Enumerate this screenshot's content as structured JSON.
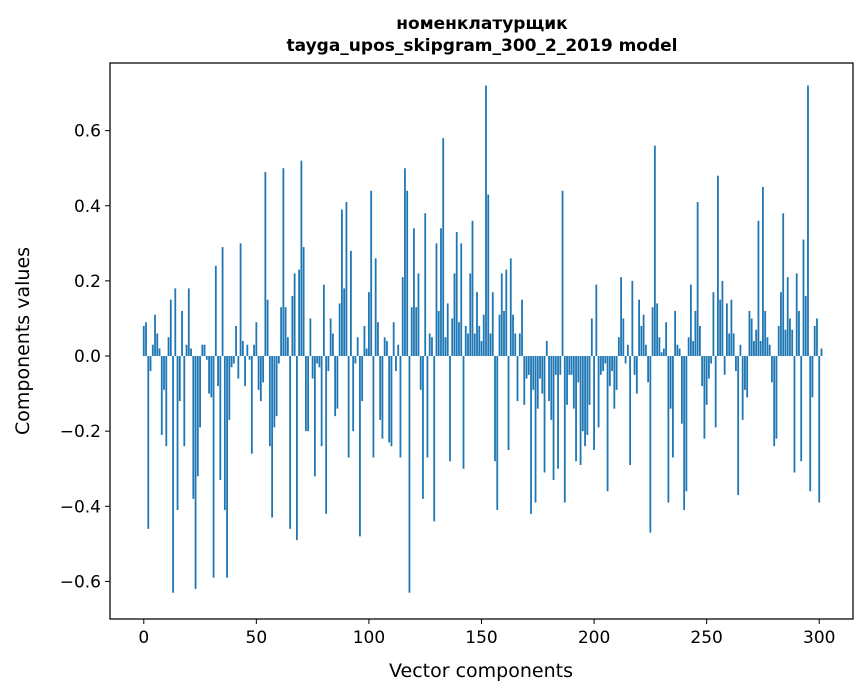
{
  "chart_data": {
    "type": "bar",
    "title_lines": [
      "номенклатурщик",
      "tayga_upos_skipgram_300_2_2019 model"
    ],
    "xlabel": "Vector components",
    "ylabel": "Components values",
    "xlim": [
      -15,
      315
    ],
    "ylim": [
      -0.7,
      0.78
    ],
    "xticks": [
      0,
      50,
      100,
      150,
      200,
      250,
      300
    ],
    "yticks": [
      -0.6,
      -0.4,
      -0.2,
      0.0,
      0.2,
      0.4,
      0.6
    ],
    "ytick_labels": [
      "−0.6",
      "−0.4",
      "−0.2",
      "0.0",
      "0.2",
      "0.4",
      "0.6"
    ],
    "bar_color": "#1f77b4",
    "grid": false,
    "legend": "none",
    "values": [
      0.08,
      0.09,
      -0.46,
      -0.04,
      0.03,
      0.11,
      0.06,
      0.02,
      -0.21,
      -0.09,
      -0.24,
      0.05,
      0.15,
      -0.63,
      0.18,
      -0.41,
      -0.12,
      0.12,
      -0.24,
      0.03,
      0.18,
      0.02,
      -0.38,
      -0.62,
      -0.32,
      -0.19,
      0.03,
      0.03,
      -0.01,
      -0.1,
      -0.11,
      -0.59,
      0.24,
      -0.08,
      -0.33,
      0.29,
      -0.41,
      -0.59,
      -0.17,
      -0.03,
      -0.02,
      0.08,
      -0.06,
      0.3,
      0.04,
      -0.08,
      0.03,
      -0.01,
      -0.26,
      0.03,
      0.09,
      -0.09,
      -0.12,
      -0.07,
      0.49,
      0.15,
      -0.24,
      -0.43,
      -0.19,
      -0.16,
      -0.02,
      0.13,
      0.5,
      0.13,
      0.05,
      -0.46,
      0.16,
      0.22,
      -0.49,
      0.23,
      0.52,
      0.29,
      -0.2,
      -0.2,
      0.1,
      -0.06,
      -0.32,
      -0.02,
      -0.03,
      -0.24,
      0.19,
      -0.42,
      -0.04,
      0.1,
      0.06,
      -0.16,
      -0.14,
      0.14,
      0.39,
      0.18,
      0.41,
      -0.27,
      0.28,
      -0.2,
      -0.02,
      0.05,
      -0.48,
      -0.12,
      0.08,
      0.02,
      0.17,
      0.44,
      -0.27,
      0.26,
      0.09,
      -0.17,
      -0.22,
      0.05,
      0.04,
      -0.23,
      -0.24,
      0.09,
      -0.04,
      0.03,
      -0.27,
      0.21,
      0.5,
      0.44,
      -0.63,
      0.13,
      0.34,
      0.13,
      0.22,
      -0.09,
      -0.38,
      0.38,
      -0.27,
      0.06,
      0.05,
      -0.44,
      0.3,
      0.12,
      0.34,
      0.58,
      0.05,
      0.14,
      -0.28,
      0.1,
      0.22,
      0.33,
      0.09,
      0.3,
      -0.3,
      0.08,
      0.06,
      0.22,
      0.36,
      0.06,
      0.17,
      0.08,
      0.04,
      0.11,
      0.72,
      0.43,
      0.06,
      0.17,
      -0.28,
      -0.41,
      0.11,
      0.22,
      0.12,
      0.23,
      -0.25,
      0.26,
      0.11,
      0.06,
      -0.12,
      0.06,
      0.15,
      -0.13,
      -0.06,
      -0.05,
      -0.42,
      -0.09,
      -0.39,
      -0.14,
      -0.06,
      -0.1,
      -0.31,
      0.04,
      -0.12,
      -0.17,
      -0.33,
      -0.05,
      -0.3,
      -0.05,
      0.44,
      -0.39,
      -0.13,
      -0.05,
      -0.05,
      -0.14,
      -0.28,
      -0.07,
      -0.29,
      -0.2,
      -0.24,
      -0.21,
      -0.13,
      0.1,
      -0.25,
      0.19,
      -0.19,
      -0.05,
      -0.04,
      -0.02,
      -0.36,
      -0.08,
      -0.04,
      -0.14,
      -0.09,
      0.05,
      0.21,
      0.1,
      -0.02,
      0.03,
      -0.29,
      0.2,
      -0.05,
      -0.1,
      0.15,
      0.08,
      0.11,
      0.03,
      -0.07,
      -0.47,
      0.13,
      0.56,
      0.14,
      0.05,
      0.01,
      0.02,
      0.09,
      -0.39,
      -0.14,
      -0.27,
      0.12,
      0.03,
      0.02,
      -0.18,
      -0.41,
      -0.36,
      0.05,
      0.19,
      0.04,
      0.12,
      0.41,
      0.08,
      -0.08,
      -0.22,
      -0.13,
      -0.06,
      -0.02,
      0.17,
      -0.19,
      0.48,
      0.15,
      0.2,
      -0.05,
      0.14,
      0.06,
      0.15,
      0.06,
      -0.04,
      -0.37,
      0.03,
      -0.17,
      -0.09,
      -0.11,
      0.12,
      0.1,
      0.04,
      0.07,
      0.36,
      0.04,
      0.45,
      0.12,
      0.05,
      0.03,
      -0.07,
      -0.24,
      -0.22,
      0.08,
      0.17,
      0.38,
      0.07,
      0.21,
      0.1,
      0.07,
      -0.31,
      0.22,
      0.12,
      -0.28,
      0.31,
      0.16,
      0.72,
      -0.36,
      -0.11,
      0.08,
      0.1,
      -0.39,
      0.02
    ]
  }
}
